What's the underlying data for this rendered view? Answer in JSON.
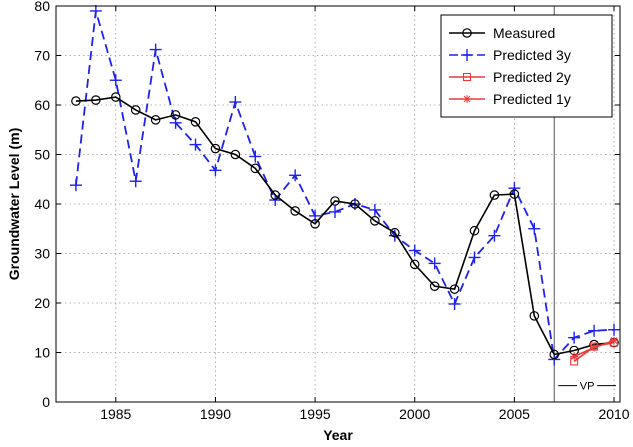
{
  "chart_data": {
    "type": "line",
    "xlabel": "Year",
    "ylabel": "Groundwater Level (m)",
    "xlim": [
      1982,
      2010.3
    ],
    "ylim": [
      0,
      80
    ],
    "xticks": [
      1985,
      1990,
      1995,
      2000,
      2005,
      2010
    ],
    "yticks": [
      0,
      10,
      20,
      30,
      40,
      50,
      60,
      70,
      80
    ],
    "grid": true,
    "legend_position": "top-right",
    "annotation": {
      "text": "VP",
      "x": 2007
    },
    "series": [
      {
        "name": "Measured",
        "color": "#000000",
        "marker": "circle",
        "dash": "solid",
        "x": [
          1983,
          1984,
          1985,
          1986,
          1987,
          1988,
          1989,
          1990,
          1991,
          1992,
          1993,
          1994,
          1995,
          1996,
          1997,
          1998,
          1999,
          2000,
          2001,
          2002,
          2003,
          2004,
          2005,
          2006,
          2007,
          2008,
          2009,
          2010
        ],
        "y": [
          60.8,
          61.0,
          61.6,
          59.0,
          57.0,
          58.0,
          56.6,
          51.2,
          50.0,
          47.2,
          41.8,
          38.6,
          36.0,
          40.6,
          40.0,
          36.6,
          34.2,
          27.8,
          23.4,
          22.8,
          34.6,
          41.8,
          42.0,
          17.4,
          9.6,
          10.4,
          11.6,
          12.0
        ]
      },
      {
        "name": "Predicted 3y",
        "color": "#1f22ee",
        "marker": "plus",
        "dash": "dashed",
        "x": [
          1983,
          1984,
          1985,
          1986,
          1987,
          1988,
          1989,
          1990,
          1991,
          1992,
          1993,
          1994,
          1995,
          1996,
          1997,
          1998,
          1999,
          2000,
          2001,
          2002,
          2003,
          2004,
          2005,
          2006,
          2007,
          2008,
          2009,
          2010
        ],
        "y": [
          43.8,
          79.0,
          65.0,
          44.6,
          71.2,
          56.4,
          52.0,
          46.8,
          60.6,
          49.6,
          40.8,
          45.8,
          37.6,
          38.4,
          40.0,
          38.8,
          33.6,
          30.6,
          28.0,
          19.8,
          29.2,
          33.6,
          43.2,
          35.0,
          8.6,
          13.0,
          14.4,
          14.6
        ]
      },
      {
        "name": "Predicted 2y",
        "color": "#e83a3a",
        "marker": "square",
        "dash": "solid",
        "x": [
          2008,
          2009,
          2010
        ],
        "y": [
          8.2,
          11.2,
          12.0
        ]
      },
      {
        "name": "Predicted 1y",
        "color": "#e83a3a",
        "marker": "star",
        "dash": "solid",
        "x": [
          2008,
          2009,
          2010
        ],
        "y": [
          9.2,
          11.0,
          12.4
        ]
      }
    ]
  }
}
